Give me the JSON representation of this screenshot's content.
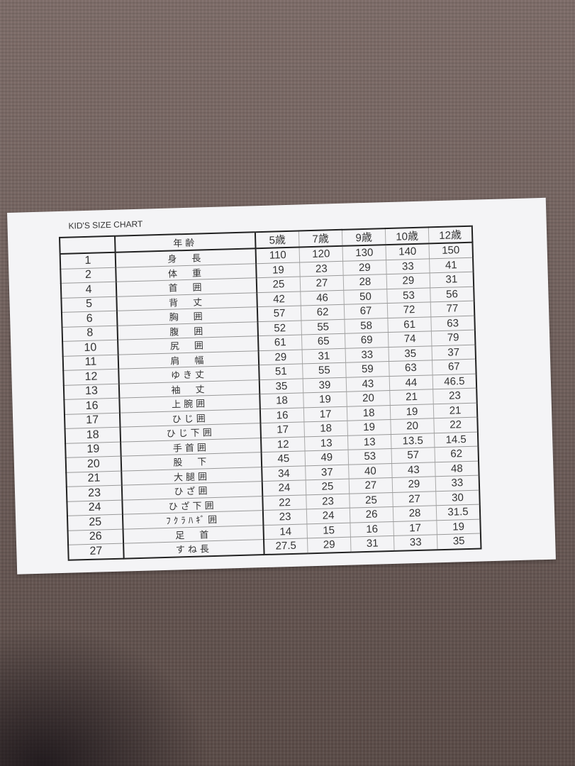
{
  "title": "KID'S SIZE CHART",
  "header": {
    "row_label": "年齢",
    "ages": [
      "5歳",
      "7歳",
      "9歳",
      "10歳",
      "12歳"
    ]
  },
  "rows": [
    {
      "no": "1",
      "label": "身　長",
      "values": [
        "110",
        "120",
        "130",
        "140",
        "150"
      ]
    },
    {
      "no": "2",
      "label": "体　重",
      "values": [
        "19",
        "23",
        "29",
        "33",
        "41"
      ]
    },
    {
      "no": "4",
      "label": "首　囲",
      "values": [
        "25",
        "27",
        "28",
        "29",
        "31"
      ]
    },
    {
      "no": "5",
      "label": "背　丈",
      "values": [
        "42",
        "46",
        "50",
        "53",
        "56"
      ]
    },
    {
      "no": "6",
      "label": "胸　囲",
      "values": [
        "57",
        "62",
        "67",
        "72",
        "77"
      ]
    },
    {
      "no": "8",
      "label": "腹　囲",
      "values": [
        "52",
        "55",
        "58",
        "61",
        "63"
      ]
    },
    {
      "no": "10",
      "label": "尻　囲",
      "values": [
        "61",
        "65",
        "69",
        "74",
        "79"
      ]
    },
    {
      "no": "11",
      "label": "肩　幅",
      "values": [
        "29",
        "31",
        "33",
        "35",
        "37"
      ]
    },
    {
      "no": "12",
      "label": "ゆき丈",
      "values": [
        "51",
        "55",
        "59",
        "63",
        "67"
      ]
    },
    {
      "no": "13",
      "label": "袖　丈",
      "values": [
        "35",
        "39",
        "43",
        "44",
        "46.5"
      ]
    },
    {
      "no": "16",
      "label": "上腕囲",
      "values": [
        "18",
        "19",
        "20",
        "21",
        "23"
      ]
    },
    {
      "no": "17",
      "label": "ひじ囲",
      "values": [
        "16",
        "17",
        "18",
        "19",
        "21"
      ]
    },
    {
      "no": "18",
      "label": "ひじ下囲",
      "values": [
        "17",
        "18",
        "19",
        "20",
        "22"
      ]
    },
    {
      "no": "19",
      "label": "手首囲",
      "values": [
        "12",
        "13",
        "13",
        "13.5",
        "14.5"
      ]
    },
    {
      "no": "20",
      "label": "股　下",
      "values": [
        "45",
        "49",
        "53",
        "57",
        "62"
      ]
    },
    {
      "no": "21",
      "label": "大腿囲",
      "values": [
        "34",
        "37",
        "40",
        "43",
        "48"
      ]
    },
    {
      "no": "23",
      "label": "ひざ囲",
      "values": [
        "24",
        "25",
        "27",
        "29",
        "33"
      ]
    },
    {
      "no": "24",
      "label": "ひざ下囲",
      "values": [
        "22",
        "23",
        "25",
        "27",
        "30"
      ]
    },
    {
      "no": "25",
      "label": "ﾌｸﾗﾊｷﾞ囲",
      "values": [
        "23",
        "24",
        "26",
        "28",
        "31.5"
      ]
    },
    {
      "no": "26",
      "label": "足　首",
      "values": [
        "14",
        "15",
        "16",
        "17",
        "19"
      ]
    },
    {
      "no": "27",
      "label": "すね長",
      "values": [
        "27.5",
        "29",
        "31",
        "33",
        "35"
      ]
    }
  ]
}
